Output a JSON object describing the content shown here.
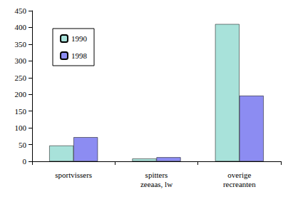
{
  "chart_data": {
    "type": "bar",
    "categories": [
      "sportvissers",
      "spitters\nzeeaas, lw",
      "overige\nrecreanten"
    ],
    "series": [
      {
        "name": "1990",
        "color": "#a8e2da",
        "values": [
          47,
          8,
          410
        ]
      },
      {
        "name": "1998",
        "color": "#8c8cf2",
        "values": [
          72,
          12,
          196
        ]
      }
    ],
    "ylim": [
      0,
      450
    ],
    "yticks": [
      0,
      50,
      100,
      150,
      200,
      250,
      300,
      350,
      400,
      450
    ],
    "grid": false,
    "legend": "upper left"
  }
}
